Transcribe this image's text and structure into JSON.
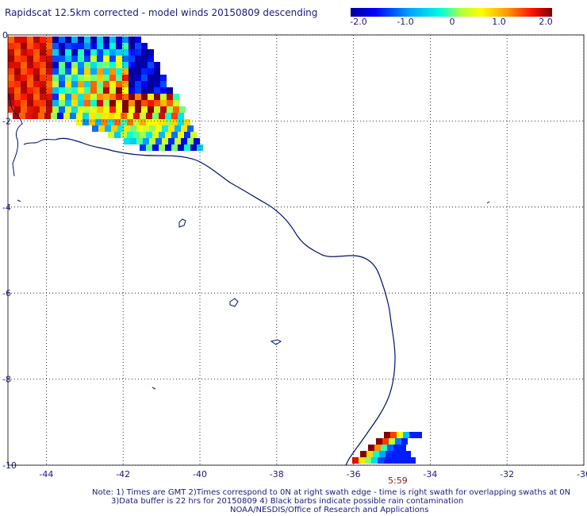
{
  "title": "Rapidscat 12.5km corrected - model winds 20150809 descending",
  "colorbar": {
    "labels": [
      "-2.0",
      "-1.0",
      "0",
      "1.0",
      "2.0"
    ],
    "min": -2.0,
    "max": 2.0
  },
  "map": {
    "lon_range": [
      -45,
      -30
    ],
    "lat_range": [
      -10,
      0
    ],
    "x_ticks": [
      "-44",
      "-42",
      "-40",
      "-38",
      "-36",
      "-34",
      "-32",
      "-30"
    ],
    "y_ticks": [
      "0",
      "-2",
      "-4",
      "-6",
      "-8",
      "-10"
    ],
    "grid": true
  },
  "swath_time": "5:59",
  "notes": {
    "line1": "Note: 1) Times are GMT 2)Times correspond to 0N at right swath edge - time is right swath for overlapping swaths at 0N",
    "line2": "3)Data buffer is 22 hrs for 20150809 4) Black barbs indicate possible rain contamination",
    "line3": "NOAA/NESDIS/Office of Research and Applications"
  }
}
